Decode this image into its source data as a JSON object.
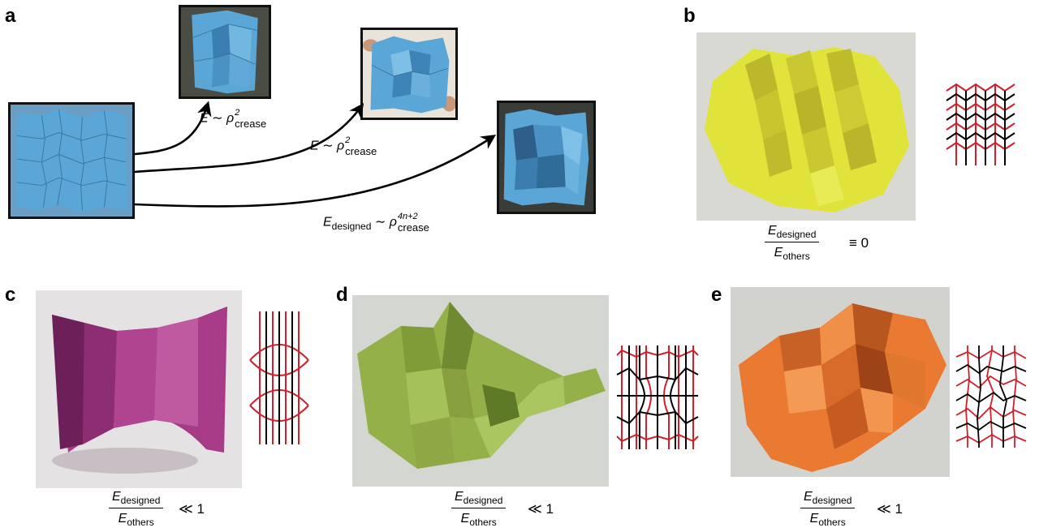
{
  "panels": {
    "a": "a",
    "b": "b",
    "c": "c",
    "d": "d",
    "e": "e"
  },
  "panel_a": {
    "label1": {
      "lhs": "E",
      "rel": "∼",
      "sym": "ρ",
      "sup": "2",
      "sub": "crease"
    },
    "label2": {
      "lhs": "E",
      "rel": "∼",
      "sym": "ρ",
      "sup": "2",
      "sub": "crease"
    },
    "label3": {
      "lhs": "E",
      "lhs_sub": "designed",
      "rel": "∼",
      "sym": "ρ",
      "sup": "4n+2",
      "sub": "crease"
    }
  },
  "ratio": {
    "num": "E",
    "num_sub": "designed",
    "den": "E",
    "den_sub": "others"
  },
  "relations": {
    "b": "≡ 0",
    "c": "≪ 1",
    "d": "≪ 1",
    "e": "≪ 1"
  },
  "colors": {
    "blue_paper": "#5aa6d6",
    "yellow_paper": "#e3e63a",
    "magenta_paper": "#a63b86",
    "green_paper": "#93b148",
    "orange_paper": "#ea7a32",
    "crease_red": "#d11f2a",
    "crease_black": "#000000"
  }
}
